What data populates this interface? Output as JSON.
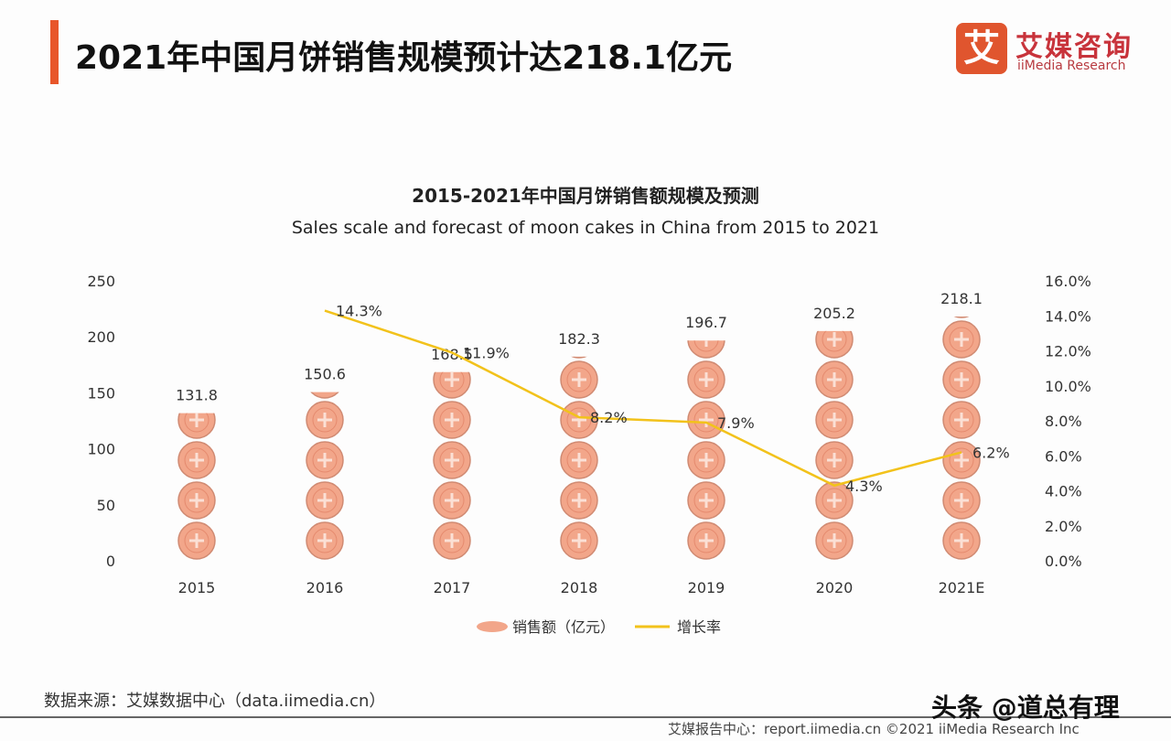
{
  "header": {
    "title": "2021年中国月饼销售规模预计达218.1亿元",
    "logo_mark": "艾",
    "logo_cn": "艾媒咨询",
    "logo_en": "iiMedia Research"
  },
  "chart_data": {
    "type": "bar+line",
    "title": "2015-2021年中国月饼销售额规模及预测",
    "subtitle": "Sales scale and forecast of moon cakes in China from 2015 to 2021",
    "categories": [
      "2015",
      "2016",
      "2017",
      "2018",
      "2019",
      "2020",
      "2021E"
    ],
    "series": [
      {
        "name": "销售额（亿元）",
        "type": "pictograph-bar",
        "axis": "left",
        "values": [
          131.8,
          150.6,
          168.5,
          182.3,
          196.7,
          205.2,
          218.1
        ],
        "labels": [
          "131.8",
          "150.6",
          "168.5",
          "182.3",
          "196.7",
          "205.2",
          "218.1"
        ],
        "color": "#f2a68a"
      },
      {
        "name": "增长率",
        "type": "line",
        "axis": "right",
        "values": [
          null,
          14.3,
          11.9,
          8.2,
          7.9,
          4.3,
          6.2
        ],
        "labels": [
          "",
          "14.3%",
          "11.9%",
          "8.2%",
          "7.9%",
          "4.3%",
          "6.2%"
        ],
        "color": "#f2c21b"
      }
    ],
    "left_axis": {
      "range": [
        0,
        250
      ],
      "ticks": [
        "0",
        "50",
        "100",
        "150",
        "200",
        "250"
      ]
    },
    "right_axis": {
      "range": [
        0,
        16
      ],
      "ticks": [
        "0.0%",
        "2.0%",
        "4.0%",
        "6.0%",
        "8.0%",
        "10.0%",
        "12.0%",
        "14.0%",
        "16.0%"
      ]
    },
    "legend": "bottom",
    "grid": false
  },
  "source": "数据来源：艾媒数据中心（data.iimedia.cn）",
  "footer": "艾媒报告中心：report.iimedia.cn    ©2021  iiMedia Research  Inc",
  "watermark": "头条 @道总有理"
}
